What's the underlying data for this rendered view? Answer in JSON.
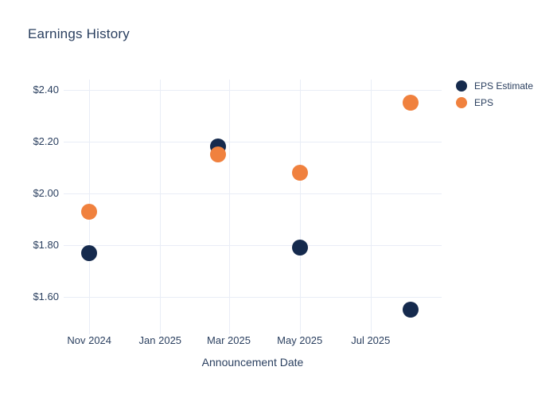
{
  "chart_data": {
    "type": "scatter",
    "title": "Earnings History",
    "xlabel": "Announcement Date",
    "grid": true,
    "legend_position": "right",
    "background_color": "#ffffff",
    "grid_color": "#e9edf6",
    "text_color": "#2a3f5f",
    "x_axis": {
      "range": [
        "2024-10-10",
        "2025-08-31"
      ],
      "ticks": [
        {
          "label": "Nov 2024",
          "date": "2024-11-01"
        },
        {
          "label": "Jan 2025",
          "date": "2025-01-01"
        },
        {
          "label": "Mar 2025",
          "date": "2025-03-01"
        },
        {
          "label": "May 2025",
          "date": "2025-05-01"
        },
        {
          "label": "Jul 2025",
          "date": "2025-07-01"
        }
      ]
    },
    "y_axis": {
      "range": [
        1.47,
        2.44
      ],
      "ticks": [
        {
          "label": "$1.60",
          "value": 1.6
        },
        {
          "label": "$1.80",
          "value": 1.8
        },
        {
          "label": "$2.00",
          "value": 2.0
        },
        {
          "label": "$2.20",
          "value": 2.2
        },
        {
          "label": "$2.40",
          "value": 2.4
        }
      ]
    },
    "series": [
      {
        "name": "EPS Estimate",
        "color": "#152a4d",
        "points": [
          {
            "date": "2024-11-01",
            "value": 1.77
          },
          {
            "date": "2025-02-20",
            "value": 2.18
          },
          {
            "date": "2025-05-01",
            "value": 1.79
          },
          {
            "date": "2025-08-04",
            "value": 1.55
          }
        ]
      },
      {
        "name": "EPS",
        "color": "#f0813e",
        "points": [
          {
            "date": "2024-11-01",
            "value": 1.93
          },
          {
            "date": "2025-02-20",
            "value": 2.15
          },
          {
            "date": "2025-05-01",
            "value": 2.08
          },
          {
            "date": "2025-08-04",
            "value": 2.35
          }
        ]
      }
    ]
  }
}
